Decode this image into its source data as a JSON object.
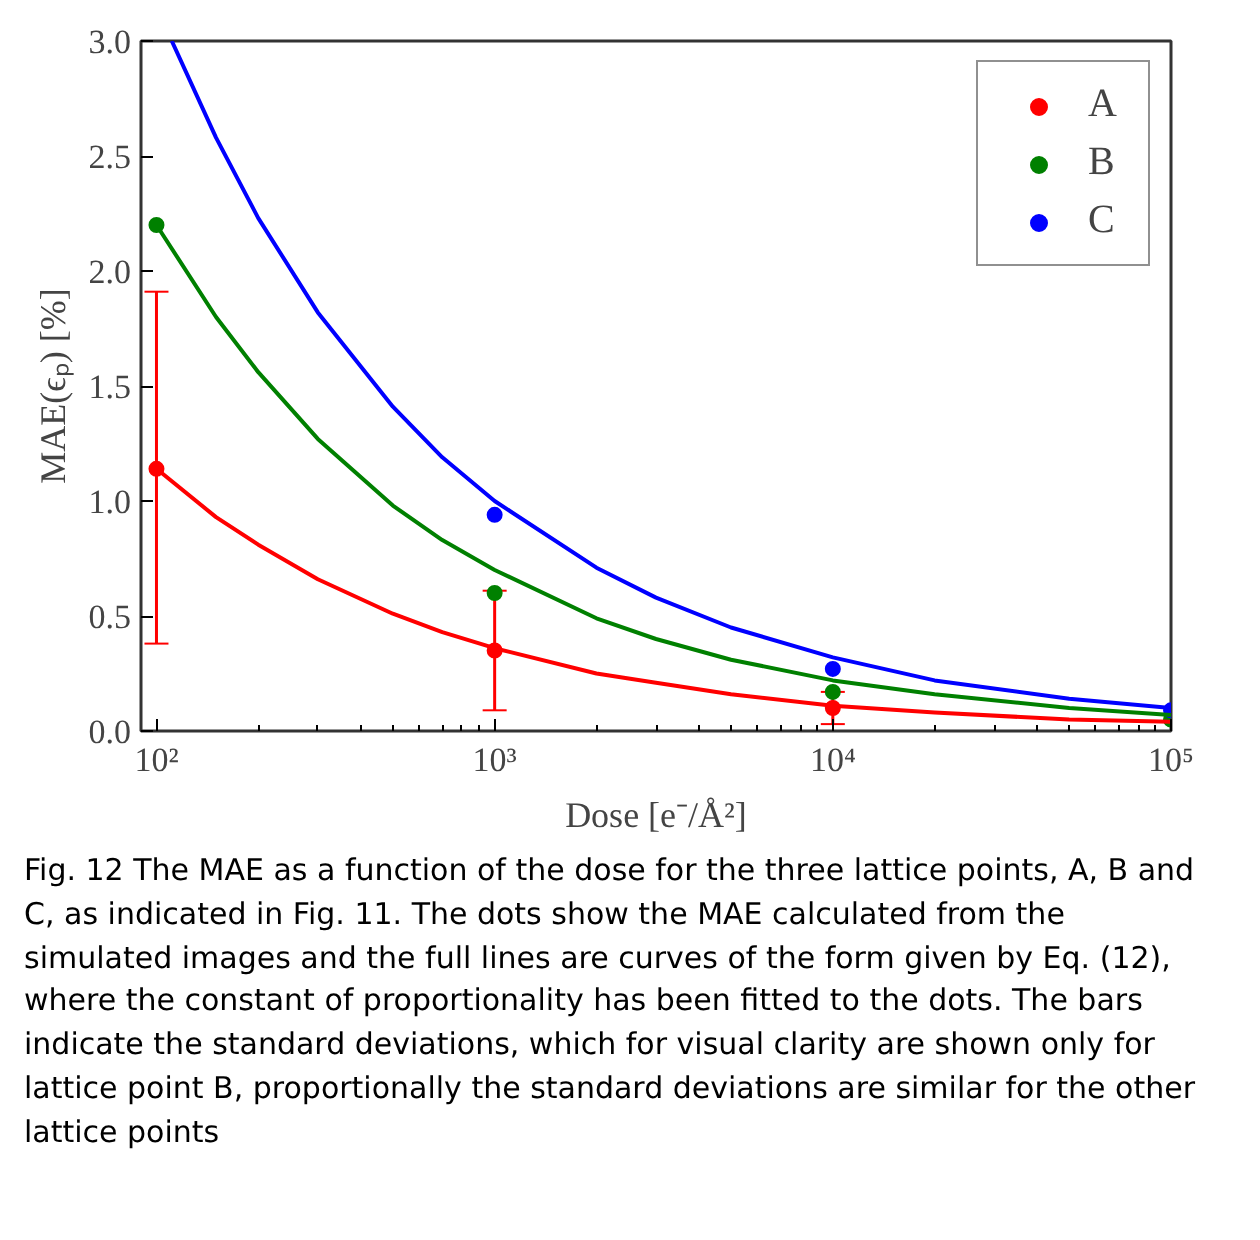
{
  "chart_data": {
    "type": "scatter",
    "xlabel": "Dose [e⁻/Å²]",
    "ylabel": "MAE(ϵₚ) [%]",
    "log": "x",
    "xlim": [
      90,
      100000
    ],
    "ylim": [
      0,
      3
    ],
    "xticks": [
      {
        "value": 100,
        "label": "10²"
      },
      {
        "value": 1000,
        "label": "10³"
      },
      {
        "value": 10000,
        "label": "10⁴"
      },
      {
        "value": 100000,
        "label": "10⁵"
      }
    ],
    "yticks": [
      {
        "value": 0,
        "label": "0.0"
      },
      {
        "value": 0.5,
        "label": "0.5"
      },
      {
        "value": 1,
        "label": "1.0"
      },
      {
        "value": 1.5,
        "label": "1.5"
      },
      {
        "value": 2,
        "label": "2.0"
      },
      {
        "value": 2.5,
        "label": "2.5"
      },
      {
        "value": 3,
        "label": "3.0"
      }
    ],
    "x": [
      100,
      1000,
      10000,
      100000
    ],
    "grid": false,
    "legend": "top right",
    "marker": "circle",
    "series": [
      {
        "name": "A",
        "color": "#ff0000",
        "values": [
          1.14,
          0.35,
          0.1,
          null
        ],
        "errors": [
          [
            0.38,
            1.91
          ],
          [
            0.09,
            0.61
          ],
          [
            0.03,
            0.17
          ],
          null
        ]
      },
      {
        "name": "B",
        "color": "#008000",
        "values": [
          2.2,
          0.6,
          0.17,
          0.05
        ]
      },
      {
        "name": "C",
        "color": "#0000ff",
        "values": [
          null,
          0.94,
          0.27,
          0.09
        ]
      },
      {
        "type": "line",
        "color": "#ff0000",
        "marker": "none",
        "line_style": "solid",
        "x": [
          100,
          150,
          200,
          300,
          500,
          700,
          1000,
          2000,
          3000,
          5000,
          10000,
          20000,
          50000,
          100000
        ],
        "values": [
          1.14,
          0.93,
          0.81,
          0.66,
          0.51,
          0.43,
          0.36,
          0.25,
          0.21,
          0.16,
          0.11,
          0.08,
          0.05,
          0.04
        ]
      },
      {
        "type": "line",
        "color": "#008000",
        "marker": "none",
        "line_style": "solid",
        "x": [
          100,
          150,
          200,
          300,
          500,
          700,
          1000,
          2000,
          3000,
          5000,
          10000,
          20000,
          50000,
          100000
        ],
        "values": [
          2.2,
          1.8,
          1.56,
          1.27,
          0.98,
          0.83,
          0.7,
          0.49,
          0.4,
          0.31,
          0.22,
          0.16,
          0.1,
          0.07
        ]
      },
      {
        "type": "line",
        "color": "#0000ff",
        "marker": "none",
        "line_style": "solid",
        "x": [
          111,
          150,
          200,
          300,
          500,
          700,
          1000,
          2000,
          3000,
          5000,
          10000,
          20000,
          50000,
          100000
        ],
        "values": [
          3.0,
          2.58,
          2.23,
          1.82,
          1.41,
          1.19,
          1.0,
          0.71,
          0.58,
          0.45,
          0.32,
          0.22,
          0.14,
          0.1
        ]
      }
    ],
    "annotations": [
      "Fig. 12 The MAE as a function of the dose for the three lattice points, A, B and C, as indicated in Fig. 11. The dots show the MAE calculated from the simulated images and the full lines are curves of the form given by Eq. (12), where the constant of proportionality has been fitted to the dots. The bars indicate the standard deviations, which for visual clarity are shown only for lattice point B, proportionally the standard deviations are similar for the other lattice points"
    ]
  }
}
